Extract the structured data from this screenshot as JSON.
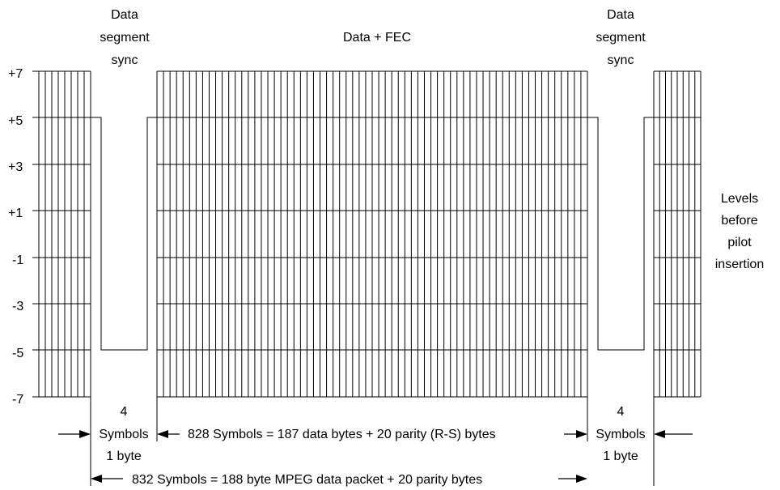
{
  "header": {
    "left_sync_label": [
      "Data",
      "segment",
      "sync"
    ],
    "center_label": "Data + FEC",
    "right_sync_label": [
      "Data",
      "segment",
      "sync"
    ]
  },
  "levels": [
    "+7",
    "+5",
    "+3",
    "+1",
    "-1",
    "-3",
    "-5",
    "-7"
  ],
  "side_label": [
    "Levels",
    "before",
    "pilot",
    "insertion"
  ],
  "annotations": {
    "left_sync_width": [
      "4",
      "Symbols",
      "1 byte"
    ],
    "data_span": "828 Symbols = 187 data bytes + 20 parity (R-S) bytes",
    "right_sync_width": [
      "4",
      "Symbols",
      "1 byte"
    ],
    "packet_span": "832 Symbols = 188 byte MPEG data packet + 20 parity bytes"
  },
  "structure": {
    "sync_symbol_levels": [
      "+5",
      "-5",
      "-5",
      "+5"
    ]
  }
}
